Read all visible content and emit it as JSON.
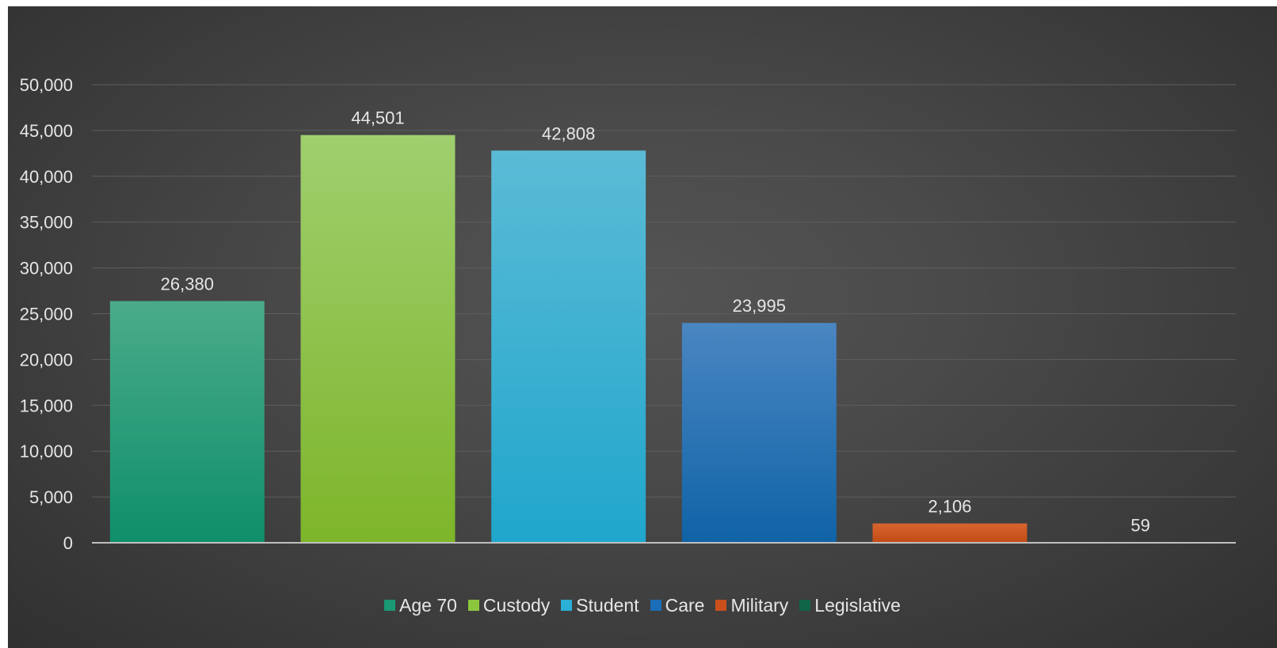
{
  "chart_data": {
    "type": "bar",
    "title": "",
    "xlabel": "",
    "ylabel": "",
    "ylim": [
      0,
      50000
    ],
    "yticks": [
      0,
      5000,
      10000,
      15000,
      20000,
      25000,
      30000,
      35000,
      40000,
      45000,
      50000
    ],
    "ytick_labels": [
      "0",
      "5,000",
      "10,000",
      "15,000",
      "20,000",
      "25,000",
      "30,000",
      "35,000",
      "40,000",
      "45,000",
      "50,000"
    ],
    "grid": true,
    "legend_position": "bottom",
    "categories": [
      "Age 70",
      "Custody",
      "Student",
      "Care",
      "Military",
      "Legislative"
    ],
    "values": [
      26380,
      44501,
      42808,
      23995,
      2106,
      59
    ],
    "data_labels": [
      "26,380",
      "44,501",
      "42,808",
      "23,995",
      "2,106",
      "59"
    ],
    "colors": [
      {
        "top": "#4aab8a",
        "bottom": "#0f8f6a"
      },
      {
        "top": "#9fcf6e",
        "bottom": "#7db52a"
      },
      {
        "top": "#5bbbd6",
        "bottom": "#20a6cc"
      },
      {
        "top": "#4a86c2",
        "bottom": "#0f63a6"
      },
      {
        "top": "#d8652e",
        "bottom": "#c14a15"
      },
      {
        "top": "#1f6e52",
        "bottom": "#0f5c40"
      }
    ],
    "legend_colors": [
      "#1a9a74",
      "#8cc63f",
      "#2aafd6",
      "#1b6db8",
      "#c9501c",
      "#0f6448"
    ]
  }
}
